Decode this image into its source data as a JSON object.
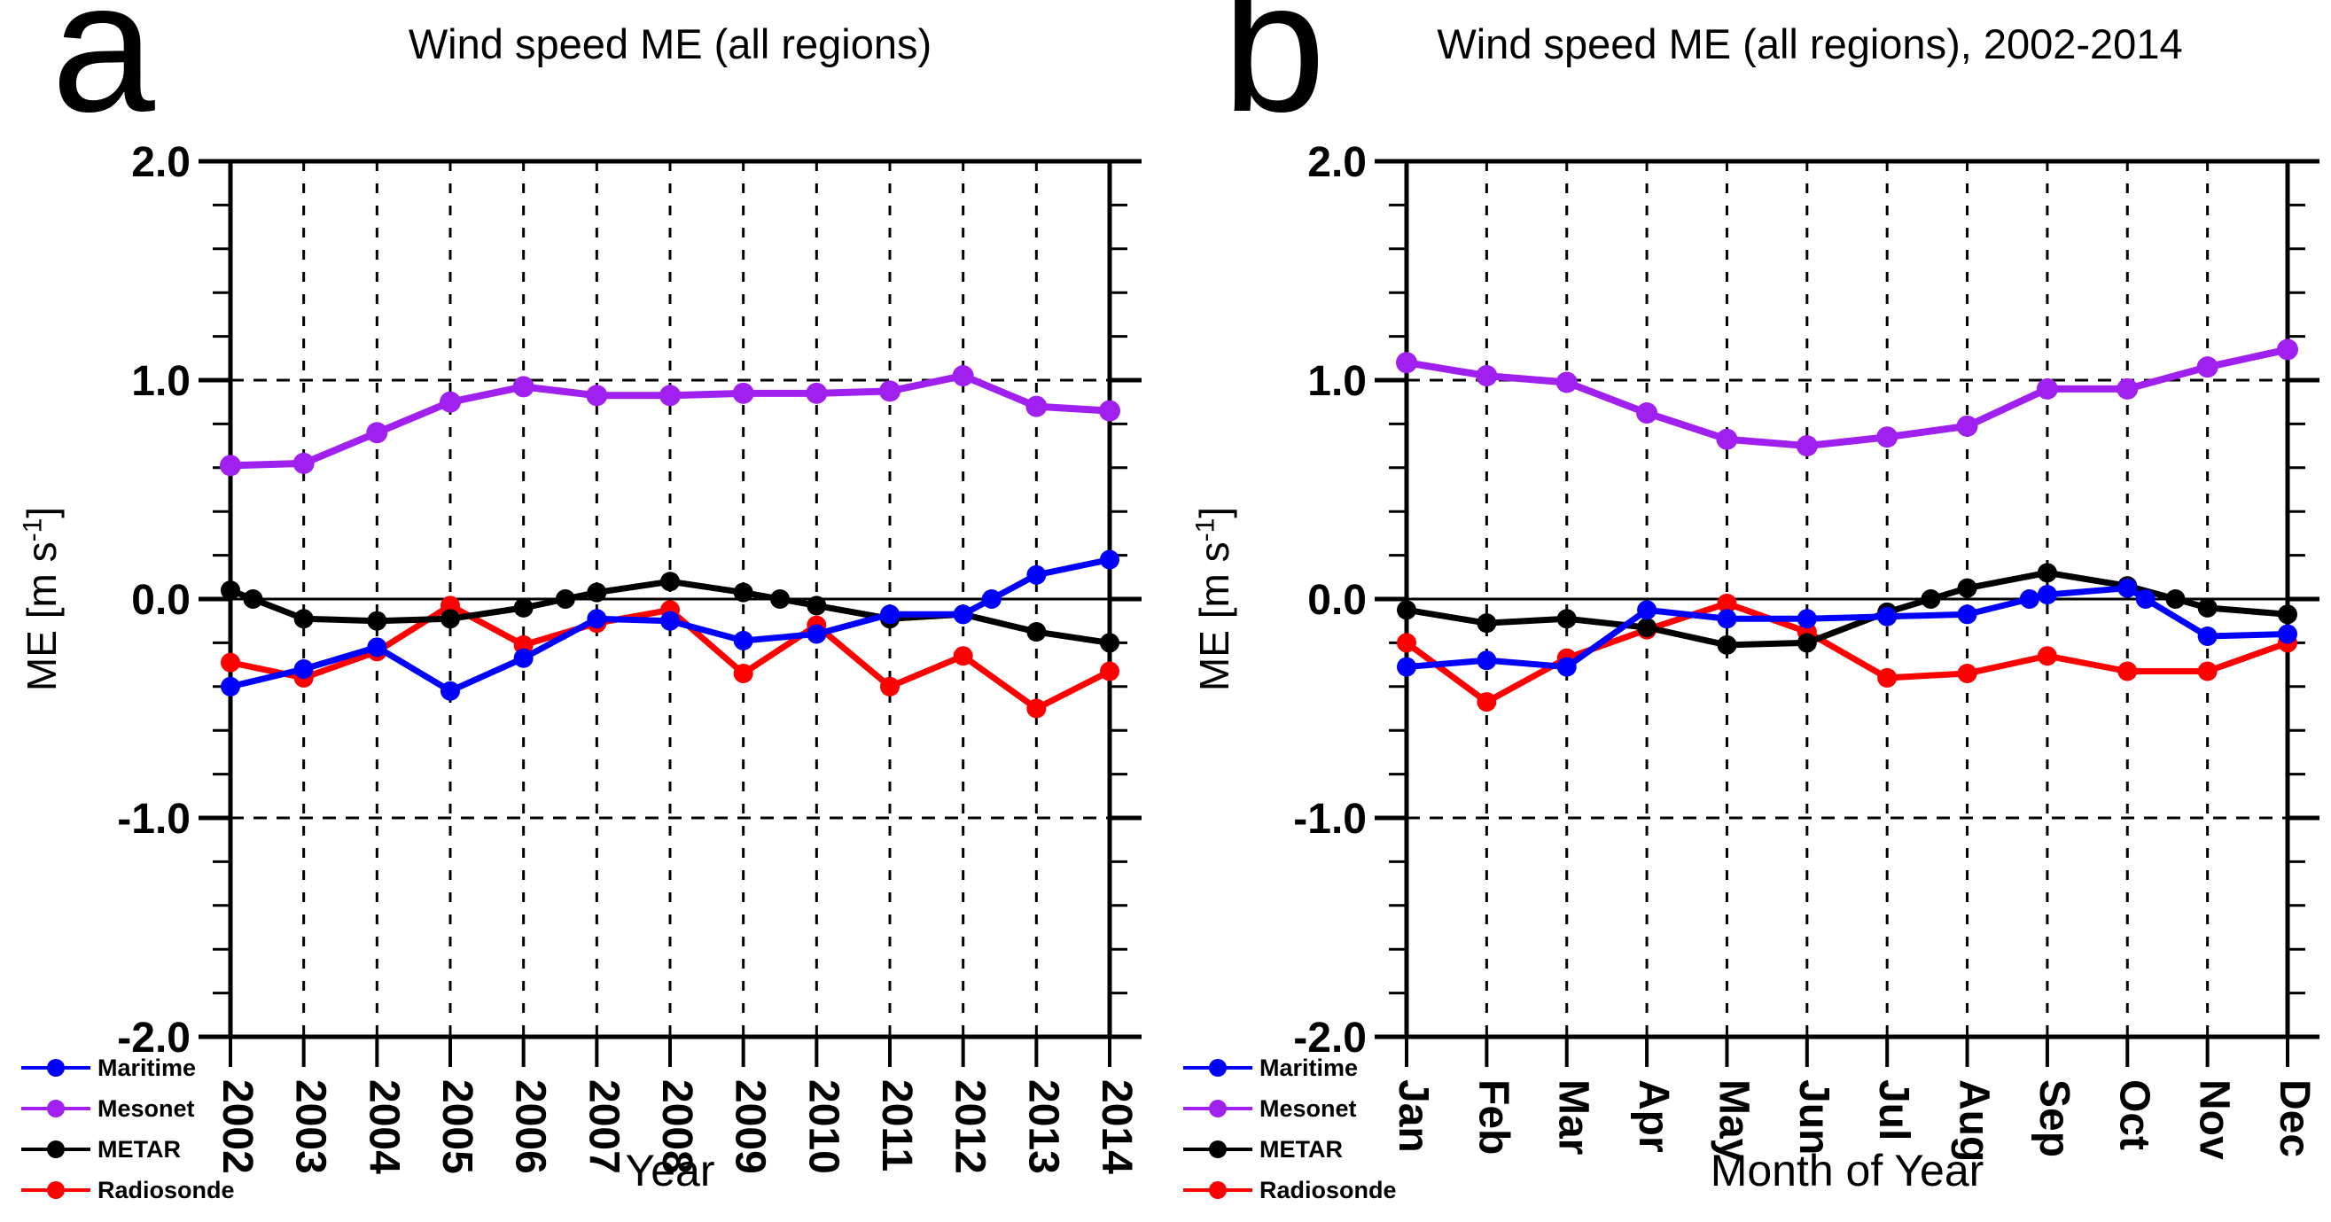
{
  "figure": {
    "background": "#ffffff",
    "text_color": "#000000"
  },
  "chart_data": [
    {
      "type": "line",
      "panel_label": "a",
      "title": "Wind speed ME (all regions)",
      "xlabel": "Year",
      "ylabel_prefix": "ME [m s",
      "ylabel_sup": "-1",
      "ylabel_suffix": "]",
      "categories": [
        "2002",
        "2003",
        "2004",
        "2005",
        "2006",
        "2007",
        "2008",
        "2009",
        "2010",
        "2011",
        "2012",
        "2013",
        "2014"
      ],
      "y_axis": {
        "min": -2.0,
        "max": 2.0,
        "major_ticks": [
          2.0,
          1.0,
          0.0,
          -1.0,
          -2.0
        ],
        "major_tick_labels": [
          "2.0",
          "1.0",
          "0.0",
          "-1.0",
          "-2.0"
        ],
        "minor_step": 0.2,
        "dashed_gridlines": [
          1.0,
          -1.0
        ],
        "zero_reference_line": 0.0
      },
      "grid": "dashed vertical lines at each interior year; dashed horizontal at +1.0 and -1.0; solid line at 0.0",
      "legend_position": "bottom-left",
      "zero_crossing_markers": true,
      "series": [
        {
          "name": "Maritime",
          "color": "#0000FF",
          "values": [
            -0.4,
            -0.32,
            -0.22,
            -0.42,
            -0.27,
            -0.09,
            -0.1,
            -0.19,
            -0.16,
            -0.07,
            -0.07,
            0.11,
            0.18
          ]
        },
        {
          "name": "Mesonet",
          "color": "#A020F0",
          "values": [
            0.61,
            0.62,
            0.76,
            0.9,
            0.97,
            0.93,
            0.93,
            0.94,
            0.94,
            0.95,
            1.02,
            0.88,
            0.86
          ]
        },
        {
          "name": "METAR",
          "color": "#000000",
          "values": [
            0.04,
            -0.09,
            -0.1,
            -0.09,
            -0.04,
            0.03,
            0.08,
            0.03,
            -0.03,
            -0.09,
            -0.07,
            -0.15,
            -0.2
          ]
        },
        {
          "name": "Radiosonde",
          "color": "#FF0000",
          "values": [
            -0.29,
            -0.36,
            -0.24,
            -0.03,
            -0.21,
            -0.11,
            -0.05,
            -0.34,
            -0.12,
            -0.4,
            -0.26,
            -0.5,
            -0.33
          ]
        }
      ]
    },
    {
      "type": "line",
      "panel_label": "b",
      "title": "Wind speed ME (all regions), 2002-2014",
      "xlabel": "Month of Year",
      "ylabel_prefix": "ME [m s",
      "ylabel_sup": "-1",
      "ylabel_suffix": "]",
      "categories": [
        "Jan",
        "Feb",
        "Mar",
        "Apr",
        "May",
        "Jun",
        "Jul",
        "Aug",
        "Sep",
        "Oct",
        "Nov",
        "Dec"
      ],
      "y_axis": {
        "min": -2.0,
        "max": 2.0,
        "major_ticks": [
          2.0,
          1.0,
          0.0,
          -1.0,
          -2.0
        ],
        "major_tick_labels": [
          "2.0",
          "1.0",
          "0.0",
          "-1.0",
          "-2.0"
        ],
        "minor_step": 0.2,
        "dashed_gridlines": [
          1.0,
          -1.0
        ],
        "zero_reference_line": 0.0
      },
      "grid": "dashed vertical lines at each interior month; dashed horizontal at +1.0 and -1.0; solid line at 0.0",
      "legend_position": "bottom-left",
      "zero_crossing_markers": true,
      "series": [
        {
          "name": "Maritime",
          "color": "#0000FF",
          "values": [
            -0.31,
            -0.28,
            -0.31,
            -0.05,
            -0.09,
            -0.09,
            -0.08,
            -0.07,
            0.02,
            0.05,
            -0.17,
            -0.16
          ]
        },
        {
          "name": "Mesonet",
          "color": "#A020F0",
          "values": [
            1.08,
            1.02,
            0.99,
            0.85,
            0.73,
            0.7,
            0.74,
            0.79,
            0.96,
            0.96,
            1.06,
            1.14
          ]
        },
        {
          "name": "METAR",
          "color": "#000000",
          "values": [
            -0.05,
            -0.11,
            -0.09,
            -0.13,
            -0.21,
            -0.2,
            -0.06,
            0.05,
            0.12,
            0.06,
            -0.04,
            -0.07
          ]
        },
        {
          "name": "Radiosonde",
          "color": "#FF0000",
          "values": [
            -0.2,
            -0.47,
            -0.27,
            -0.14,
            -0.02,
            -0.15,
            -0.36,
            -0.34,
            -0.26,
            -0.33,
            -0.33,
            -0.2
          ]
        }
      ]
    }
  ]
}
